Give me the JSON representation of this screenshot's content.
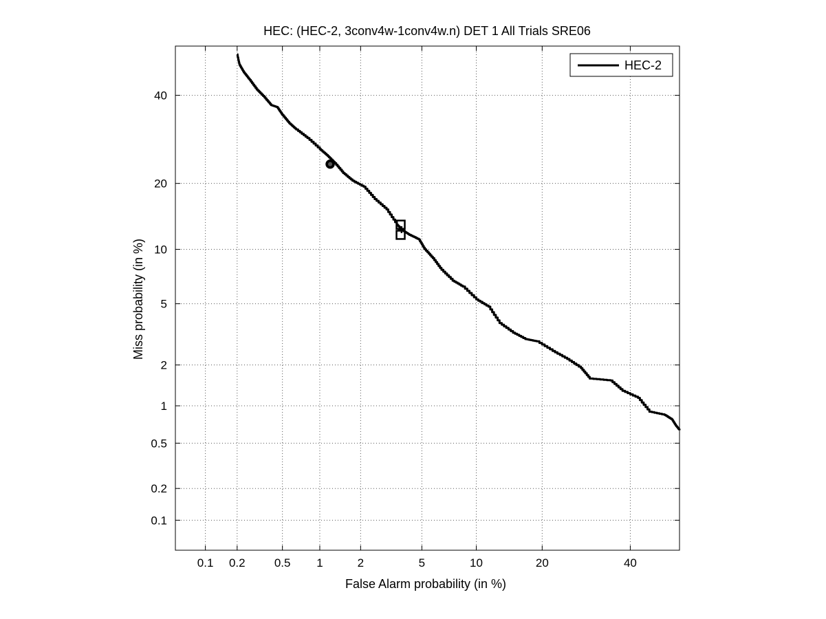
{
  "chart_data": {
    "type": "line",
    "title": "HEC: (HEC-2, 3conv4w-1conv4w.n) DET 1 All Trials SRE06",
    "xlabel": "False Alarm probability (in %)",
    "ylabel": "Miss probability (in %)",
    "x_scale": "normal-deviate (probit)",
    "y_scale": "normal-deviate (probit)",
    "xlim": [
      0.05,
      53
    ],
    "ylim": [
      0.05,
      53
    ],
    "x_ticks": [
      0.1,
      0.2,
      0.5,
      1,
      2,
      5,
      10,
      20,
      40
    ],
    "x_tick_labels": [
      "0.1",
      "0.2",
      "0.5",
      "1",
      "2",
      "5",
      "10",
      "20",
      "40"
    ],
    "y_ticks": [
      0.1,
      0.2,
      0.5,
      1,
      2,
      5,
      10,
      20,
      40
    ],
    "y_tick_labels": [
      "0.1",
      "0.2",
      "0.5",
      "1",
      "2",
      "5",
      "10",
      "20",
      "40"
    ],
    "grid": true,
    "legend_position": "top-right",
    "series": [
      {
        "name": "HEC-2",
        "color": "#000000",
        "points": [
          [
            0.2,
            50.8
          ],
          [
            0.21,
            48
          ],
          [
            0.23,
            46
          ],
          [
            0.26,
            44
          ],
          [
            0.3,
            41.5
          ],
          [
            0.35,
            39.5
          ],
          [
            0.4,
            37.5
          ],
          [
            0.45,
            37
          ],
          [
            0.5,
            35
          ],
          [
            0.57,
            33
          ],
          [
            0.65,
            31.5
          ],
          [
            0.8,
            29.5
          ],
          [
            1.0,
            27
          ],
          [
            1.15,
            25.5
          ],
          [
            1.3,
            24
          ],
          [
            1.5,
            22
          ],
          [
            1.75,
            20.5
          ],
          [
            2.1,
            19.4
          ],
          [
            2.5,
            17.2
          ],
          [
            3.0,
            15.5
          ],
          [
            3.5,
            13.2
          ],
          [
            3.8,
            12.4
          ],
          [
            4.2,
            11.8
          ],
          [
            4.8,
            11.2
          ],
          [
            5.2,
            10.0
          ],
          [
            5.8,
            9.0
          ],
          [
            6.5,
            7.8
          ],
          [
            7.5,
            6.8
          ],
          [
            8.5,
            6.3
          ],
          [
            10.0,
            5.3
          ],
          [
            11.5,
            4.8
          ],
          [
            13.0,
            3.8
          ],
          [
            15.0,
            3.3
          ],
          [
            17.0,
            3.0
          ],
          [
            19.0,
            2.9
          ],
          [
            22.0,
            2.5
          ],
          [
            25.0,
            2.2
          ],
          [
            28.0,
            1.9
          ],
          [
            30.0,
            1.6
          ],
          [
            35.0,
            1.55
          ],
          [
            38.0,
            1.3
          ],
          [
            42.0,
            1.15
          ],
          [
            45.0,
            0.9
          ],
          [
            49.0,
            0.85
          ],
          [
            51.0,
            0.78
          ],
          [
            52.0,
            0.7
          ],
          [
            53.0,
            0.64
          ]
        ]
      }
    ],
    "markers": [
      {
        "shape": "circle",
        "x": 1.2,
        "y": 23.8
      },
      {
        "shape": "square",
        "x": 3.7,
        "y": 13.2
      },
      {
        "shape": "square",
        "x": 3.7,
        "y": 11.8
      },
      {
        "shape": "cross",
        "x": 3.75,
        "y": 12.5
      }
    ]
  }
}
